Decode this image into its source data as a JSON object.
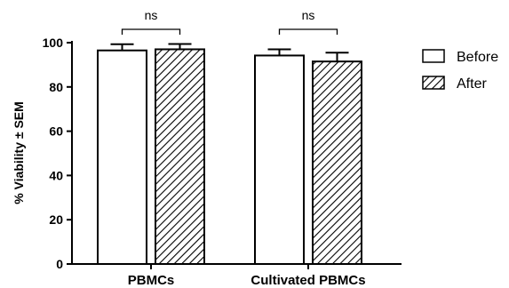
{
  "chart_data": {
    "type": "bar",
    "title": "",
    "ylabel": "% Viability ± SEM",
    "xlabel": "",
    "ylim": [
      0,
      100
    ],
    "yticks": [
      0,
      20,
      40,
      60,
      80,
      100
    ],
    "categories": [
      "PBMCs",
      "Cultivated PBMCs"
    ],
    "series": [
      {
        "name": "Before",
        "pattern": "solid-white",
        "values": [
          96.5,
          94.2
        ],
        "errors": [
          2.8,
          2.8
        ]
      },
      {
        "name": "After",
        "pattern": "hatched",
        "values": [
          97.0,
          91.5
        ],
        "errors": [
          2.4,
          4.0
        ]
      }
    ],
    "significance": [
      {
        "category": "PBMCs",
        "label": "ns"
      },
      {
        "category": "Cultivated PBMCs",
        "label": "ns"
      }
    ],
    "legend_position": "top-right",
    "grid": false
  },
  "colors": {
    "axis": "#000000",
    "fill": "#ffffff"
  }
}
